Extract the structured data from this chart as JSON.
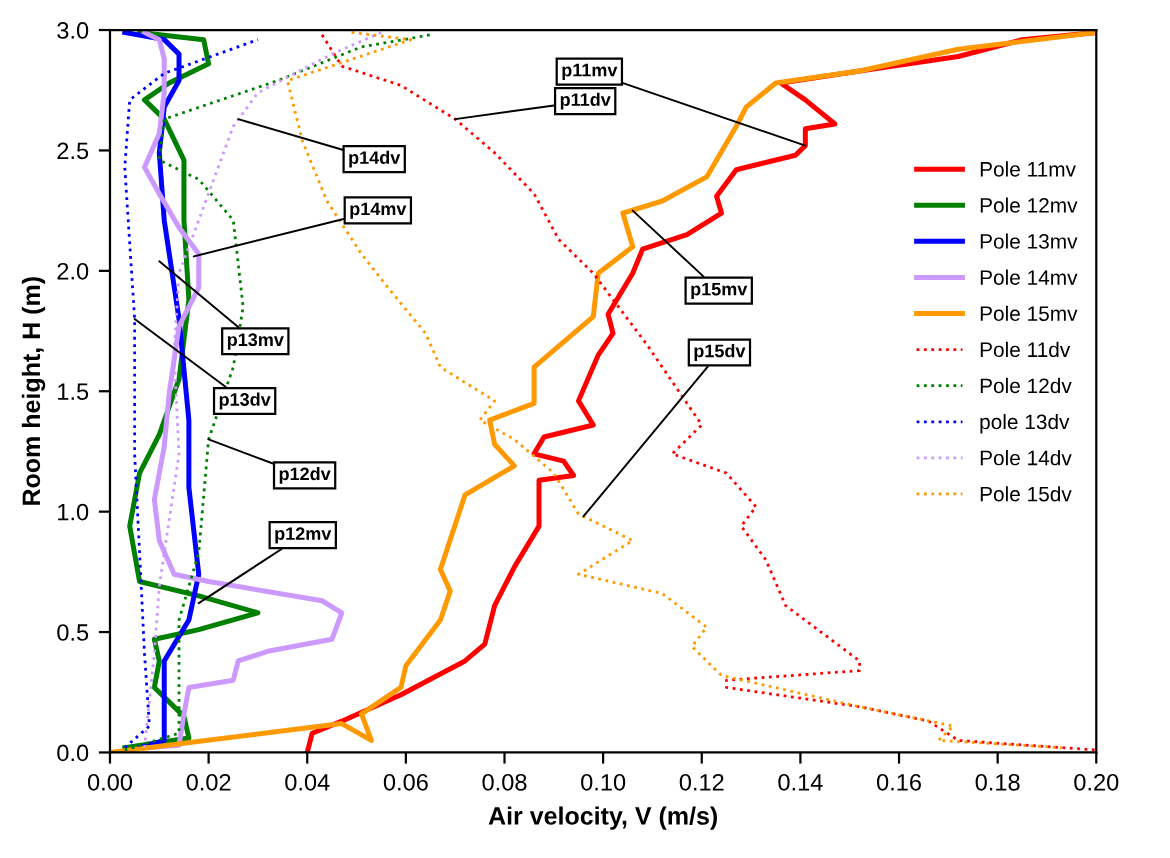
{
  "chart_data": {
    "type": "line",
    "xlabel": "Air velocity, V (m/s)",
    "ylabel": "Room height, H (m)",
    "xlim": [
      0,
      0.2
    ],
    "ylim": [
      0,
      3.0
    ],
    "xticks": [
      {
        "value": 0,
        "label": "0.00"
      },
      {
        "value": 0.02,
        "label": "0.02"
      },
      {
        "value": 0.04,
        "label": "0.04"
      },
      {
        "value": 0.06,
        "label": "0.06"
      },
      {
        "value": 0.08,
        "label": "0.08"
      },
      {
        "value": 0.1,
        "label": "0.10"
      },
      {
        "value": 0.12,
        "label": "0.12"
      },
      {
        "value": 0.14,
        "label": "0.14"
      },
      {
        "value": 0.16,
        "label": "0.16"
      },
      {
        "value": 0.18,
        "label": "0.18"
      },
      {
        "value": 0.2,
        "label": "0.20"
      }
    ],
    "yticks": [
      {
        "value": 0,
        "label": "0.0"
      },
      0.5,
      {
        "value": 1,
        "label": "1.0"
      },
      1.5,
      {
        "value": 2,
        "label": "2.0"
      },
      2.5,
      {
        "value": 3,
        "label": "3.0"
      }
    ],
    "grid": false,
    "legend": "right",
    "marker": "none",
    "series": [
      {
        "name": "Pole 11mv",
        "color": "#ff0000",
        "line_style": "solid",
        "x": [
          0.04,
          0.041,
          0.047,
          0.059,
          0.072,
          0.076,
          0.078,
          0.082,
          0.087,
          0.087,
          0.094,
          0.092,
          0.086,
          0.088,
          0.098,
          0.095,
          0.099,
          0.102,
          0.101,
          0.106,
          0.108,
          0.117,
          0.124,
          0.123,
          0.127,
          0.139,
          0.141,
          0.141,
          0.147,
          0.141,
          0.136,
          0.152,
          0.172,
          0.185,
          0.2
        ],
        "values": [
          0,
          0.08,
          0.13,
          0.24,
          0.38,
          0.45,
          0.61,
          0.77,
          0.94,
          1.13,
          1.15,
          1.21,
          1.24,
          1.31,
          1.36,
          1.46,
          1.65,
          1.74,
          1.82,
          1.99,
          2.09,
          2.15,
          2.24,
          2.31,
          2.42,
          2.48,
          2.52,
          2.59,
          2.61,
          2.71,
          2.78,
          2.83,
          2.89,
          2.96,
          2.99
        ]
      },
      {
        "name": "Pole 12mv",
        "color": "#008000",
        "line_style": "solid",
        "x": [
          0.003,
          0.016,
          0.015,
          0.009,
          0.01,
          0.009,
          0.018,
          0.03,
          0.018,
          0.006,
          0.004,
          0.006,
          0.01,
          0.014,
          0.016,
          0.015,
          0.015,
          0.011,
          0.007,
          0.012,
          0.02,
          0.019,
          0.006
        ],
        "values": [
          0.02,
          0.06,
          0.15,
          0.27,
          0.38,
          0.47,
          0.51,
          0.58,
          0.65,
          0.71,
          0.94,
          1.16,
          1.32,
          1.55,
          1.88,
          2.21,
          2.46,
          2.63,
          2.71,
          2.78,
          2.86,
          2.96,
          2.99
        ]
      },
      {
        "name": "Pole 13mv",
        "color": "#0000ff",
        "line_style": "solid",
        "x": [
          0.006,
          0.011,
          0.011,
          0.011,
          0.016,
          0.018,
          0.016,
          0.016,
          0.014,
          0.011,
          0.01,
          0.011,
          0.014,
          0.014,
          0.011,
          0.003
        ],
        "values": [
          0.02,
          0.05,
          0.27,
          0.38,
          0.55,
          0.74,
          1.1,
          1.38,
          1.8,
          2.21,
          2.49,
          2.68,
          2.79,
          2.9,
          2.96,
          2.99
        ]
      },
      {
        "name": "Pole 14mv",
        "color": "#cc99ff",
        "line_style": "solid",
        "x": [
          0.008,
          0.014,
          0.015,
          0.016,
          0.025,
          0.026,
          0.032,
          0.045,
          0.047,
          0.043,
          0.02,
          0.013,
          0.01,
          0.009,
          0.011,
          0.012,
          0.014,
          0.018,
          0.018,
          0.014,
          0.01,
          0.007,
          0.01,
          0.011,
          0.011,
          0.01,
          0.007
        ],
        "values": [
          0.02,
          0.03,
          0.16,
          0.27,
          0.3,
          0.38,
          0.42,
          0.47,
          0.58,
          0.63,
          0.71,
          0.74,
          0.88,
          1.05,
          1.27,
          1.49,
          1.77,
          1.93,
          2.07,
          2.18,
          2.32,
          2.43,
          2.57,
          2.74,
          2.88,
          2.96,
          2.99
        ]
      },
      {
        "name": "Pole 15mv",
        "color": "#ff9900",
        "line_style": "solid",
        "x": [
          0,
          0.047,
          0.053,
          0.051,
          0.059,
          0.06,
          0.067,
          0.069,
          0.067,
          0.072,
          0.082,
          0.078,
          0.077,
          0.086,
          0.086,
          0.098,
          0.099,
          0.106,
          0.104,
          0.112,
          0.121,
          0.127,
          0.129,
          0.135,
          0.152,
          0.172,
          0.2
        ],
        "values": [
          0,
          0.12,
          0.05,
          0.16,
          0.27,
          0.36,
          0.55,
          0.67,
          0.76,
          1.07,
          1.19,
          1.28,
          1.38,
          1.45,
          1.6,
          1.81,
          1.99,
          2.1,
          2.24,
          2.29,
          2.39,
          2.6,
          2.68,
          2.78,
          2.83,
          2.92,
          2.99
        ]
      },
      {
        "name": "Pole 11dv",
        "color": "#ff0000",
        "line_style": "dotted",
        "x": [
          0.043,
          0.047,
          0.059,
          0.07,
          0.078,
          0.086,
          0.091,
          0.098,
          0.109,
          0.112,
          0.12,
          0.114,
          0.125,
          0.131,
          0.128,
          0.133,
          0.137,
          0.152,
          0.152,
          0.125,
          0.125,
          0.152,
          0.166,
          0.172,
          0.2
        ],
        "values": [
          2.98,
          2.85,
          2.77,
          2.63,
          2.49,
          2.32,
          2.13,
          1.99,
          1.69,
          1.6,
          1.36,
          1.24,
          1.16,
          1.02,
          0.94,
          0.8,
          0.61,
          0.38,
          0.34,
          0.3,
          0.27,
          0.19,
          0.13,
          0.05,
          0.01
        ]
      },
      {
        "name": "Pole 12dv",
        "color": "#008000",
        "line_style": "dotted",
        "x": [
          0.003,
          0.014,
          0.014,
          0.014,
          0.018,
          0.02,
          0.025,
          0.027,
          0.025,
          0.018,
          0.01,
          0.011,
          0.034,
          0.051,
          0.065
        ],
        "values": [
          0.01,
          0.08,
          0.27,
          0.55,
          0.83,
          1.3,
          1.6,
          1.85,
          2.21,
          2.38,
          2.46,
          2.63,
          2.79,
          2.93,
          2.98
        ]
      },
      {
        "name": "pole 13dv",
        "color": "#0000ff",
        "line_style": "dotted",
        "x": [
          0.003,
          0.008,
          0.007,
          0.006,
          0.005,
          0.005,
          0.003,
          0.004,
          0.011,
          0.03
        ],
        "values": [
          0.02,
          0.11,
          0.41,
          0.83,
          1.24,
          1.8,
          2.43,
          2.71,
          2.82,
          2.96
        ]
      },
      {
        "name": "Pole 14dv",
        "color": "#cc99ff",
        "line_style": "dotted",
        "x": [
          0.007,
          0.009,
          0.01,
          0.014,
          0.013,
          0.014,
          0.018,
          0.025,
          0.03,
          0.045,
          0.055
        ],
        "values": [
          0.02,
          0.41,
          0.69,
          1.24,
          1.66,
          1.99,
          2.21,
          2.6,
          2.74,
          2.9,
          2.99
        ]
      },
      {
        "name": "Pole 15dv",
        "color": "#ff9900",
        "line_style": "dotted",
        "x": [
          0.049,
          0.061,
          0.036,
          0.039,
          0.044,
          0.051,
          0.056,
          0.064,
          0.067,
          0.078,
          0.075,
          0.082,
          0.09,
          0.095,
          0.106,
          0.095,
          0.112,
          0.121,
          0.118,
          0.124,
          0.152,
          0.171,
          0.168,
          0.193
        ],
        "values": [
          2.99,
          2.96,
          2.79,
          2.54,
          2.29,
          2.07,
          1.94,
          1.74,
          1.6,
          1.46,
          1.38,
          1.3,
          1.16,
          0.99,
          0.88,
          0.74,
          0.66,
          0.52,
          0.44,
          0.32,
          0.19,
          0.11,
          0.05,
          0.02
        ]
      }
    ],
    "annotations": [
      {
        "text": "p11mv",
        "x": 0.141,
        "y": 2.52
      },
      {
        "text": "p11dv",
        "x": 0.07,
        "y": 2.63
      },
      {
        "text": "p14dv",
        "x": 0.026,
        "y": 2.63
      },
      {
        "text": "p14mv",
        "x": 0.017,
        "y": 2.06
      },
      {
        "text": "p13mv",
        "x": 0.01,
        "y": 2.04
      },
      {
        "text": "p13dv",
        "x": 0.005,
        "y": 1.8
      },
      {
        "text": "p12dv",
        "x": 0.02,
        "y": 1.3
      },
      {
        "text": "p12mv",
        "x": 0.018,
        "y": 0.62
      },
      {
        "text": "p15mv",
        "x": 0.106,
        "y": 2.25
      },
      {
        "text": "p15dv",
        "x": 0.096,
        "y": 0.98
      }
    ]
  }
}
